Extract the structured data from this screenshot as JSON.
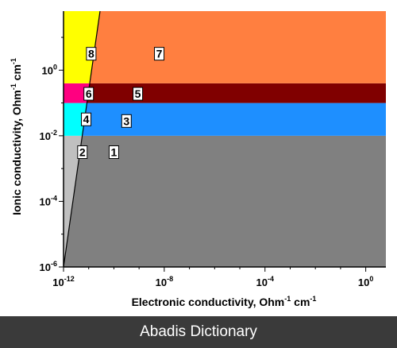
{
  "chart_data": {
    "type": "area",
    "xlabel": "Electronic conductivity,    Ohm",
    "xlabel_unit": "cm",
    "ylabel": "Ionic conductivity,    Ohm",
    "ylabel_unit": "cm",
    "x_scale": "log",
    "y_scale": "log",
    "xlim_log10": [
      -12,
      0.8
    ],
    "ylim_log10": [
      -6,
      1.8
    ],
    "x_ticks": [
      {
        "exp": -12,
        "label": "-12"
      },
      {
        "exp": -8,
        "label": "-8"
      },
      {
        "exp": -4,
        "label": "-4"
      },
      {
        "exp": 0,
        "label": "0"
      }
    ],
    "y_ticks": [
      {
        "exp": -6,
        "label": "-6"
      },
      {
        "exp": -4,
        "label": "-4"
      },
      {
        "exp": -2,
        "label": "-2"
      },
      {
        "exp": 0,
        "label": "0"
      }
    ],
    "boundary_line_log10": [
      [
        -12,
        -6
      ],
      [
        -10.55,
        1.8
      ]
    ],
    "y_bands_log10": [
      -2,
      -1,
      -0.4
    ],
    "regions": [
      {
        "label": "1",
        "color": "#808080",
        "label_at_log10": [
          -10.0,
          -2.5
        ]
      },
      {
        "label": "2",
        "color": "#c0c0c0",
        "label_at_log10": [
          -11.25,
          -2.5
        ]
      },
      {
        "label": "3",
        "color": "#1e8fff",
        "label_at_log10": [
          -9.5,
          -1.55
        ]
      },
      {
        "label": "4",
        "color": "#00ffff",
        "label_at_log10": [
          -11.1,
          -1.5
        ]
      },
      {
        "label": "5",
        "color": "#800000",
        "label_at_log10": [
          -9.05,
          -0.72
        ]
      },
      {
        "label": "6",
        "color": "#ff0080",
        "label_at_log10": [
          -11.0,
          -0.72
        ]
      },
      {
        "label": "7",
        "color": "#ff7f40",
        "label_at_log10": [
          -8.2,
          0.5
        ]
      },
      {
        "label": "8",
        "color": "#ffff00",
        "label_at_log10": [
          -10.9,
          0.5
        ]
      }
    ]
  },
  "footer": {
    "text": "Abadis Dictionary"
  }
}
